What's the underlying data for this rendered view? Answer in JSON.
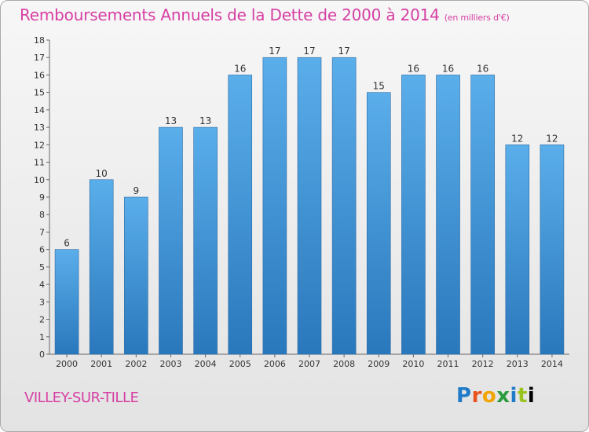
{
  "header": {
    "title": "Remboursements Annuels de la Dette de 2000 à 2014",
    "unit": "(en milliers d'€)"
  },
  "footer": {
    "commune": "VILLEY-SUR-TILLE",
    "logo_letters": [
      "P",
      "r",
      "o",
      "x",
      "i",
      "t",
      "i"
    ]
  },
  "colors": {
    "title": "#d63fa3",
    "bar_light": "#5aaeea",
    "bar_dark": "#2a78bc"
  },
  "chart_data": {
    "type": "bar",
    "categories": [
      "2000",
      "2001",
      "2002",
      "2003",
      "2004",
      "2005",
      "2006",
      "2007",
      "2008",
      "2009",
      "2010",
      "2011",
      "2012",
      "2013",
      "2014"
    ],
    "values": [
      6,
      10,
      9,
      13,
      13,
      16,
      17,
      17,
      17,
      15,
      16,
      16,
      16,
      12,
      12
    ],
    "ylim": [
      0,
      18
    ],
    "yticks": [
      0,
      1,
      2,
      3,
      4,
      5,
      6,
      7,
      8,
      9,
      10,
      11,
      12,
      13,
      14,
      15,
      16,
      17,
      18
    ],
    "grid": false,
    "legend": "none"
  }
}
